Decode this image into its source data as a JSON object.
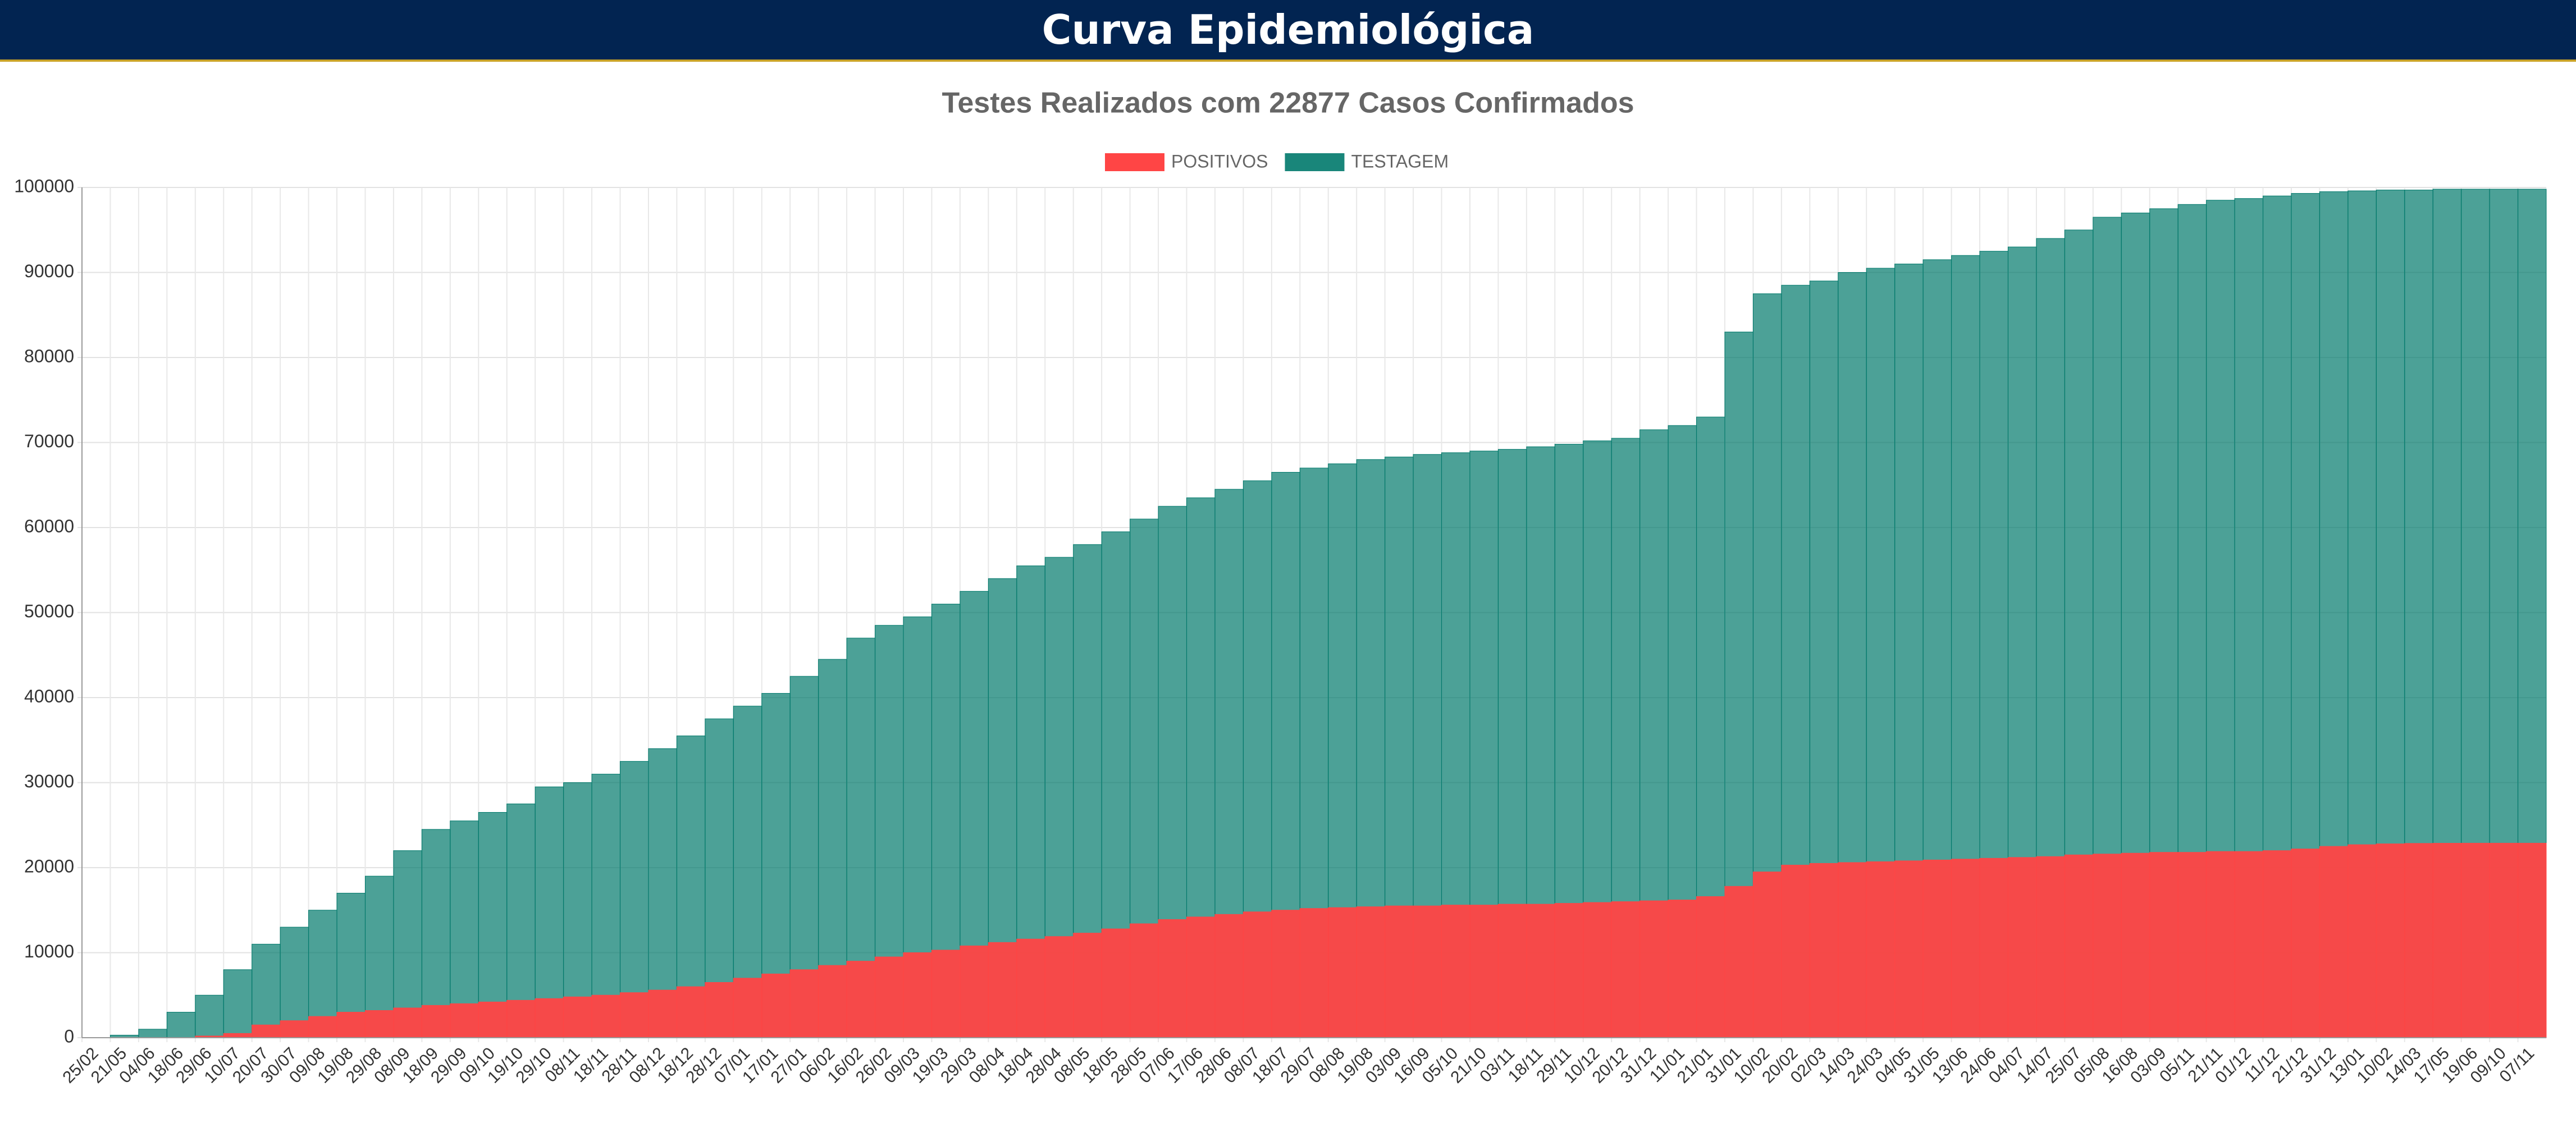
{
  "header": {
    "title": "Curva Epidemiológica"
  },
  "chart_data": {
    "type": "bar",
    "title": "Testes Realizados com 22877 Casos Confirmados",
    "categories": [
      "25/02",
      "21/05",
      "04/06",
      "18/06",
      "29/06",
      "10/07",
      "20/07",
      "30/07",
      "09/08",
      "19/08",
      "29/08",
      "08/09",
      "18/09",
      "29/09",
      "09/10",
      "19/10",
      "29/10",
      "08/11",
      "18/11",
      "28/11",
      "08/12",
      "18/12",
      "28/12",
      "07/01",
      "17/01",
      "27/01",
      "06/02",
      "16/02",
      "26/02",
      "09/03",
      "19/03",
      "29/03",
      "08/04",
      "18/04",
      "28/04",
      "08/05",
      "18/05",
      "28/05",
      "07/06",
      "17/06",
      "28/06",
      "08/07",
      "18/07",
      "29/07",
      "08/08",
      "19/08",
      "03/09",
      "16/09",
      "05/10",
      "21/10",
      "03/11",
      "18/11",
      "29/11",
      "10/12",
      "20/12",
      "31/12",
      "11/01",
      "21/01",
      "31/01",
      "10/02",
      "20/02",
      "02/03",
      "14/03",
      "24/03",
      "04/05",
      "31/05",
      "13/06",
      "24/06",
      "04/07",
      "14/07",
      "25/07",
      "05/08",
      "16/08",
      "03/09",
      "05/11",
      "21/11",
      "01/12",
      "11/12",
      "21/12",
      "31/12",
      "13/01",
      "10/02",
      "14/03",
      "17/05",
      "19/06",
      "09/10",
      "07/11"
    ],
    "series": [
      {
        "name": "POSITIVOS",
        "color": "#ff4545",
        "values": [
          0,
          0,
          0,
          0,
          200,
          500,
          1500,
          2000,
          2500,
          3000,
          3200,
          3500,
          3800,
          4000,
          4200,
          4400,
          4600,
          4800,
          5000,
          5300,
          5600,
          6000,
          6500,
          7000,
          7500,
          8000,
          8500,
          9000,
          9500,
          10000,
          10300,
          10800,
          11200,
          11600,
          11900,
          12300,
          12800,
          13400,
          13900,
          14200,
          14500,
          14800,
          15000,
          15200,
          15300,
          15400,
          15500,
          15500,
          15600,
          15600,
          15700,
          15700,
          15800,
          15900,
          16000,
          16100,
          16200,
          16600,
          17800,
          19500,
          20300,
          20500,
          20600,
          20700,
          20800,
          20900,
          21000,
          21100,
          21200,
          21300,
          21500,
          21600,
          21700,
          21800,
          21800,
          21900,
          21900,
          22000,
          22200,
          22500,
          22700,
          22800,
          22850,
          22870,
          22877,
          22877,
          22877
        ]
      },
      {
        "name": "TESTAGEM",
        "color": "#00796b",
        "values": [
          0,
          300,
          1000,
          3000,
          5000,
          8000,
          11000,
          13000,
          15000,
          17000,
          19000,
          22000,
          24500,
          25500,
          26500,
          27500,
          29500,
          30000,
          31000,
          32500,
          34000,
          35500,
          37500,
          39000,
          40500,
          42500,
          44500,
          47000,
          48500,
          49500,
          51000,
          52500,
          54000,
          55500,
          56500,
          58000,
          59500,
          61000,
          62500,
          63500,
          64500,
          65500,
          66500,
          67000,
          67500,
          68000,
          68300,
          68600,
          68800,
          69000,
          69200,
          69500,
          69800,
          70200,
          70500,
          71500,
          72000,
          73000,
          83000,
          87500,
          88500,
          89000,
          90000,
          90500,
          91000,
          91500,
          92000,
          92500,
          93000,
          94000,
          95000,
          96500,
          97000,
          97500,
          98000,
          98500,
          98700,
          99000,
          99300,
          99500,
          99600,
          99700,
          99700,
          99800,
          99800,
          99800,
          99800
        ]
      }
    ],
    "ylim": [
      0,
      100000
    ],
    "yticks": [
      0,
      10000,
      20000,
      30000,
      40000,
      50000,
      60000,
      70000,
      80000,
      90000,
      100000
    ],
    "grid": true,
    "legend": "top"
  }
}
